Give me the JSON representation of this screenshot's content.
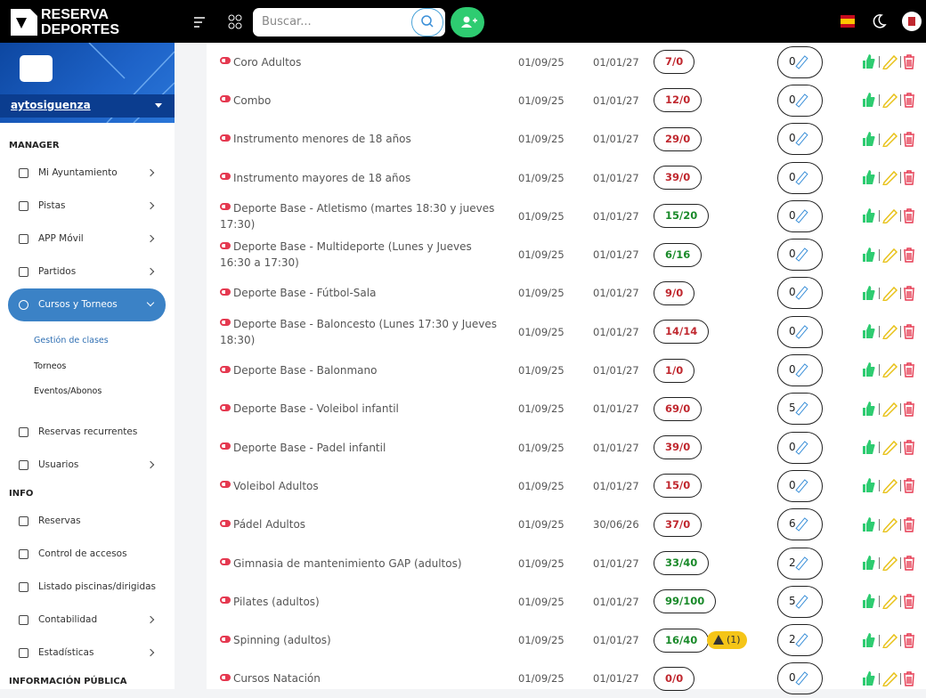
{
  "header": {
    "brand": [
      "RESERVA",
      "DEPORTES"
    ],
    "search_placeholder": "Buscar..."
  },
  "sidebar": {
    "account": "aytosiguenza",
    "sections": [
      {
        "title": "MANAGER",
        "items": [
          {
            "label": "Mi Ayuntamiento",
            "arrow": true
          },
          {
            "label": "Pistas",
            "arrow": true
          },
          {
            "label": "APP Móvil",
            "arrow": true
          },
          {
            "label": "Partidos",
            "arrow": true
          },
          {
            "label": "Cursos y Torneos",
            "arrow": true,
            "active": true,
            "children": [
              {
                "label": "Gestión de clases",
                "active": true
              },
              {
                "label": "Torneos"
              },
              {
                "label": "Eventos/Abonos"
              }
            ]
          },
          {
            "label": "Reservas recurrentes",
            "arrow": false
          },
          {
            "label": "Usuarios",
            "arrow": true
          }
        ]
      },
      {
        "title": "INFO",
        "items": [
          {
            "label": "Reservas",
            "arrow": false
          },
          {
            "label": "Control de accesos",
            "arrow": false
          },
          {
            "label": "Listado piscinas/dirigidas",
            "arrow": false
          },
          {
            "label": "Contabilidad",
            "arrow": true
          },
          {
            "label": "Estadísticas",
            "arrow": true
          }
        ]
      },
      {
        "title": "INFORMACIÓN PÚBLICA",
        "items": []
      }
    ]
  },
  "table": {
    "rows": [
      {
        "name": "Coro Adultos",
        "start": "01/09/25",
        "end": "01/01/27",
        "occupancy": "7/0",
        "color": "red",
        "count": 0
      },
      {
        "name": "Combo",
        "start": "01/09/25",
        "end": "01/01/27",
        "occupancy": "12/0",
        "color": "red",
        "count": 0
      },
      {
        "name": "Instrumento menores de 18 años",
        "start": "01/09/25",
        "end": "01/01/27",
        "occupancy": "29/0",
        "color": "red",
        "count": 0
      },
      {
        "name": "Instrumento mayores de 18 años",
        "start": "01/09/25",
        "end": "01/01/27",
        "occupancy": "39/0",
        "color": "red",
        "count": 0
      },
      {
        "name": "Deporte Base - Atletismo (martes 18:30 y jueves 17:30)",
        "start": "01/09/25",
        "end": "01/01/27",
        "occupancy": "15/20",
        "color": "green",
        "count": 0
      },
      {
        "name": "Deporte Base - Multideporte (Lunes y Jueves 16:30 a 17:30)",
        "start": "01/09/25",
        "end": "01/01/27",
        "occupancy": "6/16",
        "color": "green",
        "count": 0
      },
      {
        "name": "Deporte Base - Fútbol-Sala",
        "start": "01/09/25",
        "end": "01/01/27",
        "occupancy": "9/0",
        "color": "red",
        "count": 0
      },
      {
        "name": "Deporte Base - Baloncesto (Lunes 17:30 y Jueves 18:30)",
        "start": "01/09/25",
        "end": "01/01/27",
        "occupancy": "14/14",
        "color": "red",
        "count": 0
      },
      {
        "name": "Deporte Base - Balonmano",
        "start": "01/09/25",
        "end": "01/01/27",
        "occupancy": "1/0",
        "color": "red",
        "count": 0
      },
      {
        "name": "Deporte Base - Voleibol infantil",
        "start": "01/09/25",
        "end": "01/01/27",
        "occupancy": "69/0",
        "color": "red",
        "count": 5
      },
      {
        "name": "Deporte Base - Padel infantil",
        "start": "01/09/25",
        "end": "01/01/27",
        "occupancy": "39/0",
        "color": "red",
        "count": 0
      },
      {
        "name": "Voleibol Adultos",
        "start": "01/09/25",
        "end": "01/01/27",
        "occupancy": "15/0",
        "color": "red",
        "count": 0
      },
      {
        "name": "Pádel Adultos",
        "start": "01/09/25",
        "end": "30/06/26",
        "occupancy": "37/0",
        "color": "red",
        "count": 6
      },
      {
        "name": "Gimnasia de mantenimiento GAP (adultos)",
        "start": "01/09/25",
        "end": "01/01/27",
        "occupancy": "33/40",
        "color": "green",
        "count": 2
      },
      {
        "name": "Pilates (adultos)",
        "start": "01/09/25",
        "end": "01/01/27",
        "occupancy": "99/100",
        "color": "green",
        "count": 5
      },
      {
        "name": "Spinning (adultos)",
        "start": "01/09/25",
        "end": "01/01/27",
        "occupancy": "16/40",
        "color": "green",
        "warning": "(1)",
        "count": 2
      },
      {
        "name": "Cursos Natación",
        "start": "01/09/25",
        "end": "01/01/27",
        "occupancy": "0/0",
        "color": "red",
        "count": 0
      }
    ]
  }
}
